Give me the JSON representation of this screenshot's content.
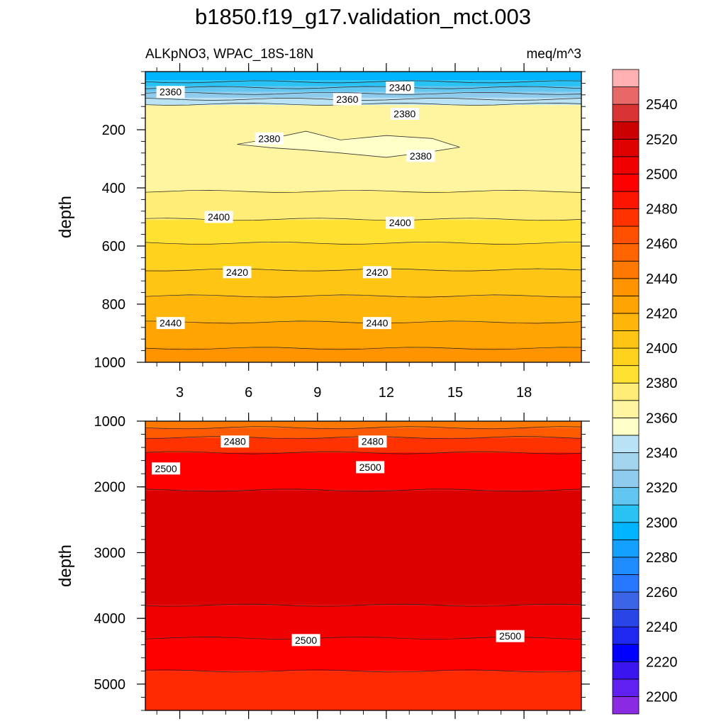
{
  "chart_data": {
    "type": "contour",
    "title": "b1850.f19_g17.validation_mct.003",
    "left_subtitle": "ALKpNO3, WPAC_18S-18N",
    "right_subtitle": "meq/m^3",
    "units": "meq/m^3",
    "x_ticks": [
      3,
      6,
      9,
      12,
      15,
      18
    ],
    "x_tick_labels": [
      "3",
      "6",
      "9",
      "12",
      "15",
      "18"
    ],
    "xlim": [
      1.5,
      20.5
    ],
    "panels": [
      {
        "name": "upper",
        "ylabel": "depth",
        "ylim": [
          0,
          1000
        ],
        "y_ticks": [
          200,
          400,
          600,
          800,
          1000
        ],
        "y_tick_labels": [
          "200",
          "400",
          "600",
          "800",
          "1000"
        ],
        "bands": [
          {
            "top": 0,
            "bottom": 30,
            "color": "#00b4ff"
          },
          {
            "top": 30,
            "bottom": 50,
            "color": "#29c2f4"
          },
          {
            "top": 50,
            "bottom": 70,
            "color": "#62c6f0"
          },
          {
            "top": 70,
            "bottom": 90,
            "color": "#8ecbec"
          },
          {
            "top": 90,
            "bottom": 115,
            "color": "#b9e2f4"
          },
          {
            "top": 115,
            "bottom": 410,
            "color": "#fff5a0"
          },
          {
            "top": 410,
            "bottom": 510,
            "color": "#ffed78"
          },
          {
            "top": 510,
            "bottom": 590,
            "color": "#ffe132"
          },
          {
            "top": 590,
            "bottom": 680,
            "color": "#ffd21e"
          },
          {
            "top": 680,
            "bottom": 770,
            "color": "#ffc514"
          },
          {
            "top": 770,
            "bottom": 860,
            "color": "#ffb50a"
          },
          {
            "top": 860,
            "bottom": 950,
            "color": "#ffa400"
          },
          {
            "top": 950,
            "bottom": 1000,
            "color": "#ff9400"
          }
        ],
        "patch": {
          "value": 2380,
          "color": "#ffffc8",
          "x": [
            5.5,
            7.0,
            8.5,
            10.0,
            12.0,
            14.0,
            15.2,
            14.0,
            12.0,
            10.0,
            8.5,
            7.0,
            5.5
          ],
          "depth": [
            250,
            230,
            205,
            235,
            220,
            230,
            260,
            275,
            295,
            280,
            270,
            262,
            250
          ]
        },
        "contour_lines": [
          35,
          55,
          75,
          95,
          112,
          412,
          508,
          590,
          682,
          772,
          862,
          952
        ],
        "contour_labels": [
          {
            "text": "2360",
            "x": 2.6,
            "depth": 70
          },
          {
            "text": "2360",
            "x": 10.3,
            "depth": 95
          },
          {
            "text": "2340",
            "x": 12.6,
            "depth": 55
          },
          {
            "text": "2380",
            "x": 12.8,
            "depth": 145
          },
          {
            "text": "2380",
            "x": 6.9,
            "depth": 230
          },
          {
            "text": "2380",
            "x": 13.5,
            "depth": 290
          },
          {
            "text": "2400",
            "x": 4.7,
            "depth": 500
          },
          {
            "text": "2400",
            "x": 12.6,
            "depth": 520
          },
          {
            "text": "2420",
            "x": 5.5,
            "depth": 690
          },
          {
            "text": "2420",
            "x": 11.6,
            "depth": 690
          },
          {
            "text": "2440",
            "x": 2.6,
            "depth": 865
          },
          {
            "text": "2440",
            "x": 11.6,
            "depth": 865
          }
        ]
      },
      {
        "name": "lower",
        "ylabel": "depth",
        "ylim": [
          1000,
          5400
        ],
        "y_ticks": [
          1000,
          2000,
          3000,
          4000,
          5000
        ],
        "y_tick_labels": [
          "1000",
          "2000",
          "3000",
          "4000",
          "5000"
        ],
        "bands": [
          {
            "top": 1000,
            "bottom": 1100,
            "color": "#ff7800"
          },
          {
            "top": 1100,
            "bottom": 1250,
            "color": "#ff5a00"
          },
          {
            "top": 1250,
            "bottom": 1480,
            "color": "#ff3200"
          },
          {
            "top": 1480,
            "bottom": 2050,
            "color": "#ff0000"
          },
          {
            "top": 2050,
            "bottom": 3800,
            "color": "#dc0000"
          },
          {
            "top": 3800,
            "bottom": 4300,
            "color": "#f00000"
          },
          {
            "top": 4300,
            "bottom": 4800,
            "color": "#ff0000"
          },
          {
            "top": 4800,
            "bottom": 5400,
            "color": "#ff2a00"
          }
        ],
        "contour_lines": [
          1100,
          1250,
          1480,
          2050,
          3800,
          4300,
          4800
        ],
        "contour_labels": [
          {
            "text": "2480",
            "x": 5.4,
            "depth": 1310
          },
          {
            "text": "2480",
            "x": 11.4,
            "depth": 1310
          },
          {
            "text": "2500",
            "x": 2.4,
            "depth": 1720
          },
          {
            "text": "2500",
            "x": 11.3,
            "depth": 1700
          },
          {
            "text": "2500",
            "x": 8.5,
            "depth": 4330
          },
          {
            "text": "2500",
            "x": 17.4,
            "depth": 4270
          }
        ]
      }
    ],
    "colorbar": {
      "levels": [
        2190,
        2200,
        2210,
        2220,
        2230,
        2240,
        2250,
        2260,
        2270,
        2280,
        2290,
        2300,
        2310,
        2320,
        2330,
        2340,
        2350,
        2360,
        2370,
        2380,
        2390,
        2400,
        2410,
        2420,
        2430,
        2440,
        2450,
        2460,
        2470,
        2480,
        2490,
        2500,
        2510,
        2520,
        2530,
        2540,
        2550,
        2560
      ],
      "colors": [
        "#8a2be2",
        "#6020f0",
        "#3c14f0",
        "#0000ff",
        "#1e28f0",
        "#2846e8",
        "#3c64e6",
        "#2878ff",
        "#1e8cff",
        "#14a0ff",
        "#00b4ff",
        "#29c2f4",
        "#62c6f0",
        "#8ecbec",
        "#a2d4ee",
        "#b9e2f4",
        "#ffffc8",
        "#fff5a0",
        "#ffed78",
        "#ffe132",
        "#ffd21e",
        "#ffc514",
        "#ffb50a",
        "#ffa400",
        "#ff9400",
        "#ff7800",
        "#ff6400",
        "#ff5000",
        "#ff3200",
        "#ff1400",
        "#ff0000",
        "#f00000",
        "#e00000",
        "#cc0000",
        "#d83232",
        "#e86868",
        "#ffb0b0"
      ],
      "labels": [
        "2200",
        "2220",
        "2240",
        "2260",
        "2280",
        "2300",
        "2320",
        "2340",
        "2360",
        "2380",
        "2400",
        "2420",
        "2440",
        "2460",
        "2480",
        "2500",
        "2520",
        "2540"
      ]
    }
  }
}
